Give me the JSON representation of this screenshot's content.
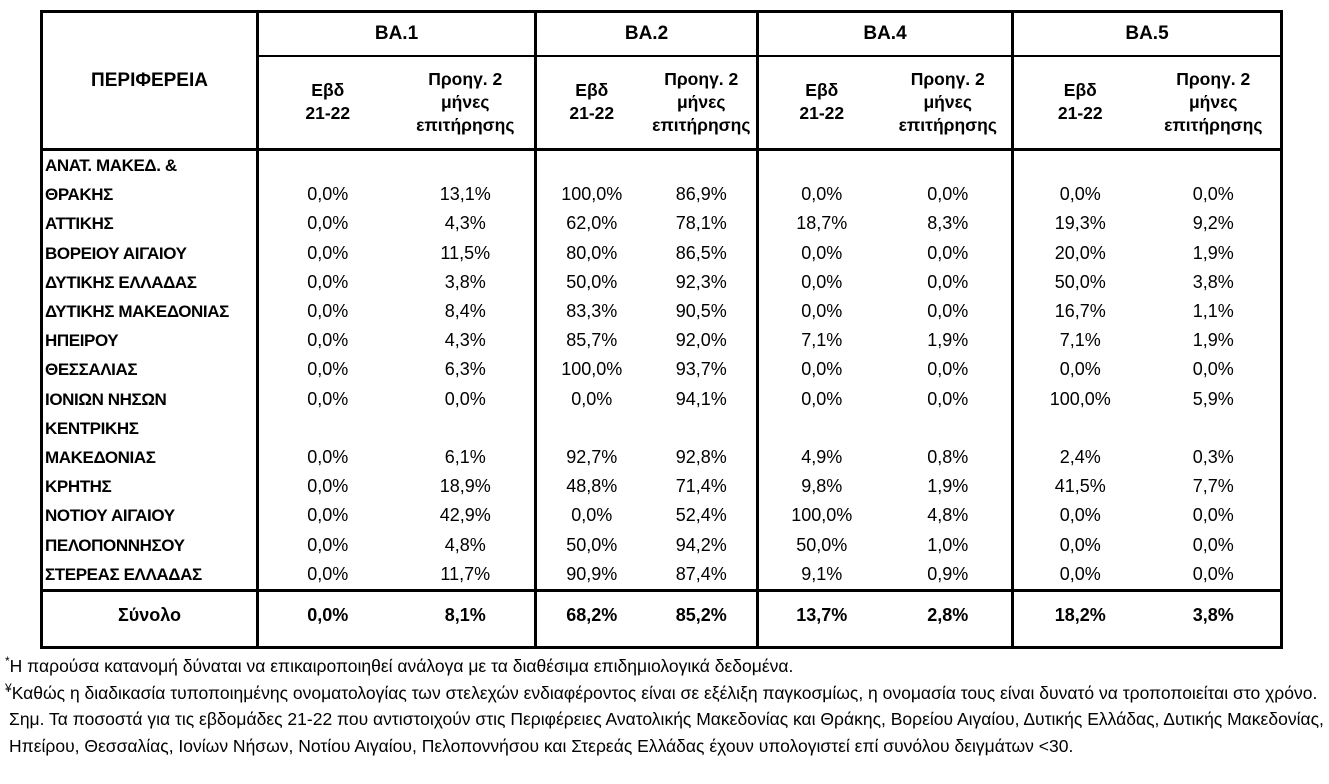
{
  "page": {
    "background_color": "#ffffff",
    "text_color": "#000000",
    "border_color": "#000000"
  },
  "table": {
    "region_header": "ΠΕΡΙΦΕΡΕΙΑ",
    "groups": [
      "BA.1",
      "BA.2",
      "BA.4",
      "BA.5"
    ],
    "subheader_week": "Εβδ\n21-22",
    "subheader_prev": "Προηγ. 2\nμήνες\nεπιτήρησης",
    "rows": [
      {
        "region": "ΑΝΑΤ. ΜΑΚΕΔ. &\nΘΡΑΚΗΣ",
        "values": [
          "0,0%",
          "13,1%",
          "100,0%",
          "86,9%",
          "0,0%",
          "0,0%",
          "0,0%",
          "0,0%"
        ]
      },
      {
        "region": "ΑΤΤΙΚΗΣ",
        "values": [
          "0,0%",
          "4,3%",
          "62,0%",
          "78,1%",
          "18,7%",
          "8,3%",
          "19,3%",
          "9,2%"
        ]
      },
      {
        "region": "ΒΟΡΕΙΟΥ ΑΙΓΑΙΟΥ",
        "values": [
          "0,0%",
          "11,5%",
          "80,0%",
          "86,5%",
          "0,0%",
          "0,0%",
          "20,0%",
          "1,9%"
        ]
      },
      {
        "region": "ΔΥΤΙΚΗΣ ΕΛΛΑΔΑΣ",
        "values": [
          "0,0%",
          "3,8%",
          "50,0%",
          "92,3%",
          "0,0%",
          "0,0%",
          "50,0%",
          "3,8%"
        ]
      },
      {
        "region": "ΔΥΤΙΚΗΣ ΜΑΚΕΔΟΝΙΑΣ",
        "values": [
          "0,0%",
          "8,4%",
          "83,3%",
          "90,5%",
          "0,0%",
          "0,0%",
          "16,7%",
          "1,1%"
        ]
      },
      {
        "region": "ΗΠΕΙΡΟΥ",
        "values": [
          "0,0%",
          "4,3%",
          "85,7%",
          "92,0%",
          "7,1%",
          "1,9%",
          "7,1%",
          "1,9%"
        ]
      },
      {
        "region": "ΘΕΣΣΑΛΙΑΣ",
        "values": [
          "0,0%",
          "6,3%",
          "100,0%",
          "93,7%",
          "0,0%",
          "0,0%",
          "0,0%",
          "0,0%"
        ]
      },
      {
        "region": "ΙΟΝΙΩΝ ΝΗΣΩΝ",
        "values": [
          "0,0%",
          "0,0%",
          "0,0%",
          "94,1%",
          "0,0%",
          "0,0%",
          "100,0%",
          "5,9%"
        ]
      },
      {
        "region": "ΚΕΝΤΡΙΚΗΣ\nΜΑΚΕΔΟΝΙΑΣ",
        "values": [
          "0,0%",
          "6,1%",
          "92,7%",
          "92,8%",
          "4,9%",
          "0,8%",
          "2,4%",
          "0,3%"
        ]
      },
      {
        "region": "ΚΡΗΤΗΣ",
        "values": [
          "0,0%",
          "18,9%",
          "48,8%",
          "71,4%",
          "9,8%",
          "1,9%",
          "41,5%",
          "7,7%"
        ]
      },
      {
        "region": "ΝΟΤΙΟΥ ΑΙΓΑΙΟΥ",
        "values": [
          "0,0%",
          "42,9%",
          "0,0%",
          "52,4%",
          "100,0%",
          "4,8%",
          "0,0%",
          "0,0%"
        ]
      },
      {
        "region": "ΠΕΛΟΠΟΝΝΗΣΟΥ",
        "values": [
          "0,0%",
          "4,8%",
          "50,0%",
          "94,2%",
          "50,0%",
          "1,0%",
          "0,0%",
          "0,0%"
        ]
      },
      {
        "region": "ΣΤΕΡΕΑΣ ΕΛΛΑΔΑΣ",
        "values": [
          "0,0%",
          "11,7%",
          "90,9%",
          "87,4%",
          "9,1%",
          "0,9%",
          "0,0%",
          "0,0%"
        ]
      }
    ],
    "total": {
      "label": "Σύνολο",
      "values": [
        "0,0%",
        "8,1%",
        "68,2%",
        "85,2%",
        "13,7%",
        "2,8%",
        "18,2%",
        "3,8%"
      ]
    }
  },
  "footnotes": [
    {
      "marker": "*",
      "text": "Η παρούσα κατανομή δύναται να επικαιροποιηθεί ανάλογα με τα διαθέσιμα επιδημιολογικά δεδομένα."
    },
    {
      "marker": "¥",
      "text": "Καθώς η διαδικασία τυποποιημένης ονοματολογίας των στελεχών ενδιαφέροντος είναι σε εξέλιξη παγκοσμίως, η ονομασία τους είναι δυνατό να τροποποιείται στο χρόνο."
    },
    {
      "marker": "",
      "text": "Σημ. Τα ποσοστά για τις εβδομάδες 21-22 που αντιστοιχούν στις Περιφέρειες Ανατολικής Μακεδονίας και Θράκης, Βορείου Αιγαίου, Δυτικής Ελλάδας, Δυτικής Μακεδονίας, Ηπείρου, Θεσσαλίας, Ιονίων Νήσων, Νοτίου Αιγαίου, Πελοποννήσου και Στερεάς Ελλάδας έχουν υπολογιστεί επί συνόλου δειγμάτων <30."
    }
  ]
}
